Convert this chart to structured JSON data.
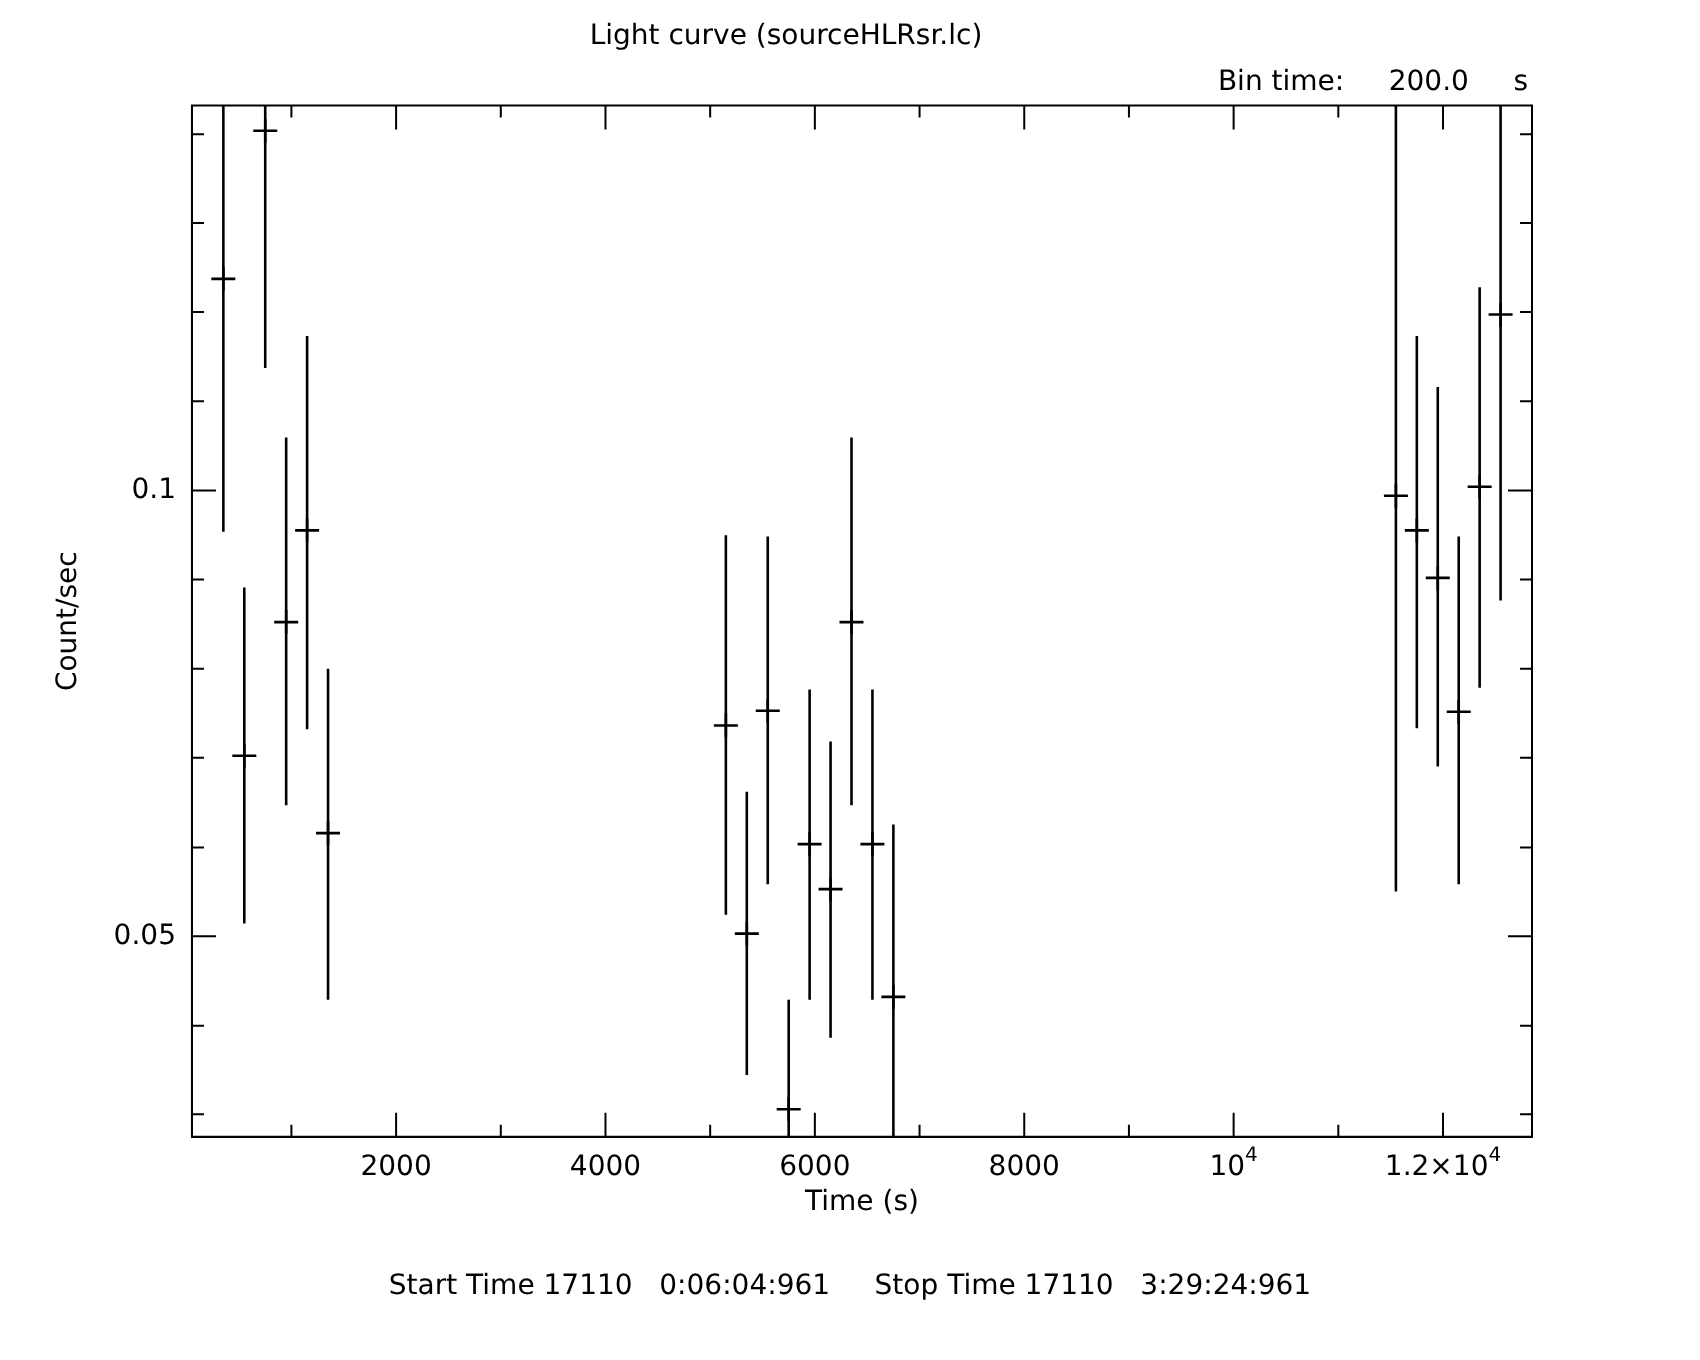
{
  "chart_data": {
    "type": "scatter",
    "title": "Light curve (sourceHLRsr.lc)",
    "xlabel": "Time (s)",
    "ylabel": "Count/sec",
    "annotations": [
      "Bin time:     200.0     s",
      "Start Time 17110   0:06:04:961     Stop Time 17110   3:29:24:961"
    ],
    "x": [
      350,
      550,
      750,
      950,
      1150,
      1350,
      5150,
      5350,
      5550,
      5750,
      5950,
      6150,
      6350,
      6550,
      6750,
      11550,
      11750,
      11950,
      12150,
      12350,
      12550
    ],
    "values": [
      0.139,
      0.0662,
      0.175,
      0.0815,
      0.094,
      0.0587,
      0.0694,
      0.0502,
      0.071,
      0.0382,
      0.0577,
      0.0538,
      0.0815,
      0.0577,
      0.0455,
      0.0992,
      0.094,
      0.0873,
      0.0709,
      0.1006,
      0.1315
    ],
    "errors": [
      [
        0.0938,
        0.182
      ],
      [
        0.051,
        0.086
      ],
      [
        0.121,
        0.182
      ],
      [
        0.0613,
        0.1086
      ],
      [
        0.069,
        0.1272
      ],
      [
        0.0453,
        0.0758
      ],
      [
        0.0517,
        0.0933
      ],
      [
        0.0403,
        0.0626
      ],
      [
        0.0542,
        0.0931
      ],
      [
        0.0366,
        0.0453
      ],
      [
        0.0453,
        0.0734
      ],
      [
        0.0427,
        0.0677
      ],
      [
        0.0613,
        0.1086
      ],
      [
        0.0453,
        0.0734
      ],
      [
        0.0366,
        0.0595
      ],
      [
        0.0536,
        0.182
      ],
      [
        0.0691,
        0.1272
      ],
      [
        0.0651,
        0.1175
      ],
      [
        0.0542,
        0.0931
      ],
      [
        0.0736,
        0.1372
      ],
      [
        0.0843,
        0.182
      ]
    ],
    "color": "#000000",
    "marker": "cross",
    "log": "y",
    "grid": false,
    "legend": false,
    "xlim": [
      50,
      12850
    ],
    "xticks": [
      {
        "value": 1000,
        "label": null
      },
      2000,
      {
        "value": 3000,
        "label": null
      },
      4000,
      {
        "value": 5000,
        "label": null
      },
      6000,
      {
        "value": 7000,
        "label": null
      },
      8000,
      {
        "value": 9000,
        "label": null
      },
      {
        "value": 10000,
        "label": "10$^{4}$"
      },
      {
        "value": 11000,
        "label": null
      },
      {
        "value": 12000,
        "label": "1.2×10$^{4}$"
      }
    ],
    "ylim": [
      0.0366,
      0.182
    ],
    "yticks": [
      {
        "value": 0.0379,
        "label": null
      },
      {
        "value": 0.0435,
        "label": null
      },
      0.05,
      {
        "value": 0.0574,
        "label": null
      },
      {
        "value": 0.066,
        "label": null
      },
      {
        "value": 0.0758,
        "label": null
      },
      {
        "value": 0.0871,
        "label": null
      },
      0.1,
      {
        "value": 0.1149,
        "label": null
      },
      {
        "value": 0.132,
        "label": null
      },
      {
        "value": 0.1516,
        "label": null
      },
      {
        "value": 0.1741,
        "label": null
      }
    ]
  }
}
